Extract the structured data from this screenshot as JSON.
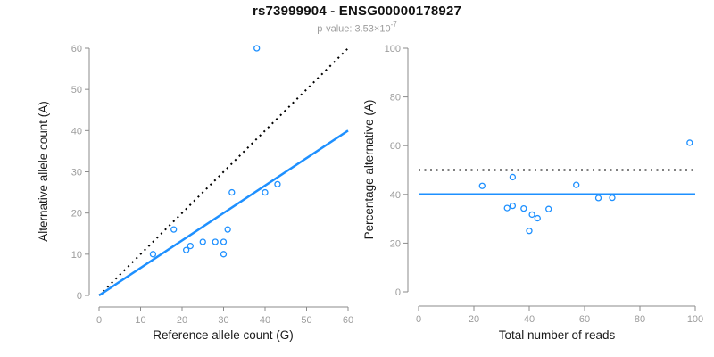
{
  "header": {
    "title": "rs73999904 - ENSG00000178927",
    "pvalue_text": "p-value: 3.53×10",
    "pvalue_exponent": "-7"
  },
  "colors": {
    "accent_blue": "#1E90FF",
    "axis_gray": "#8b8b8b",
    "tick_label_gray": "#9c9c9c",
    "reference_line_black": "#000000",
    "background": "#ffffff"
  },
  "chart_data": [
    {
      "type": "scatter",
      "name": "allele-counts",
      "xlabel": "Reference allele count (G)",
      "ylabel": "Alternative allele count (A)",
      "xlim": [
        0,
        60
      ],
      "ylim": [
        0,
        60
      ],
      "xticks": [
        0,
        10,
        20,
        30,
        40,
        50,
        60
      ],
      "yticks": [
        0,
        10,
        20,
        30,
        40,
        50,
        60
      ],
      "grid": false,
      "legend": "none",
      "points": [
        [
          13,
          10
        ],
        [
          18,
          16
        ],
        [
          21,
          11
        ],
        [
          22,
          12
        ],
        [
          25,
          13
        ],
        [
          28,
          13
        ],
        [
          30,
          10
        ],
        [
          30,
          13
        ],
        [
          31,
          16
        ],
        [
          32,
          25
        ],
        [
          38,
          60
        ],
        [
          40,
          25
        ],
        [
          43,
          27
        ]
      ],
      "lines": [
        {
          "name": "identity-line",
          "style": "dotted",
          "color": "#000000",
          "from": [
            0,
            0
          ],
          "to": [
            60,
            60
          ]
        },
        {
          "name": "expected-ratio-line",
          "style": "solid",
          "color": "#1E90FF",
          "from": [
            0,
            0
          ],
          "to": [
            60,
            40
          ]
        }
      ]
    },
    {
      "type": "scatter",
      "name": "percentage-vs-reads",
      "xlabel": "Total number of reads",
      "ylabel": "Percentage alternative (A)",
      "xlim": [
        0,
        100
      ],
      "ylim": [
        0,
        100
      ],
      "xticks": [
        0,
        20,
        40,
        60,
        80,
        100
      ],
      "yticks": [
        0,
        20,
        40,
        60,
        80,
        100
      ],
      "grid": false,
      "legend": "none",
      "points": [
        [
          23,
          43.5
        ],
        [
          34,
          47.1
        ],
        [
          32,
          34.4
        ],
        [
          34,
          35.3
        ],
        [
          38,
          34.2
        ],
        [
          41,
          31.7
        ],
        [
          43,
          30.2
        ],
        [
          40,
          25.0
        ],
        [
          47,
          34.0
        ],
        [
          57,
          43.9
        ],
        [
          65,
          38.5
        ],
        [
          70,
          38.6
        ],
        [
          98,
          61.2
        ]
      ],
      "lines": [
        {
          "name": "fifty-percent-line",
          "style": "dotted",
          "color": "#000000",
          "y": 50
        },
        {
          "name": "forty-percent-line",
          "style": "solid",
          "color": "#1E90FF",
          "y": 40
        }
      ]
    }
  ]
}
